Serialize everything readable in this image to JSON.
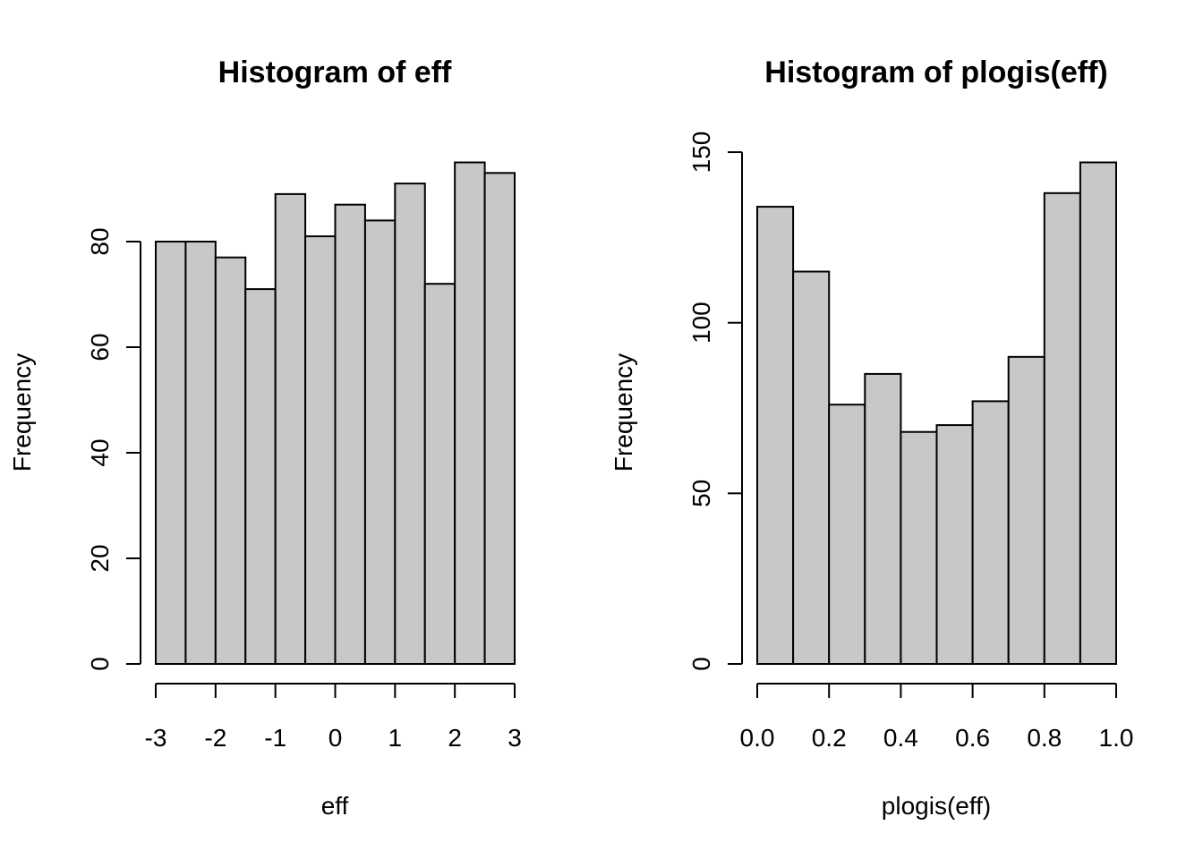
{
  "chart_data": [
    {
      "type": "bar",
      "title": "Histogram of eff",
      "xlabel": "eff",
      "ylabel": "Frequency",
      "bins": [
        {
          "from": -3.0,
          "to": -2.5,
          "count": 80
        },
        {
          "from": -2.5,
          "to": -2.0,
          "count": 80
        },
        {
          "from": -2.0,
          "to": -1.5,
          "count": 77
        },
        {
          "from": -1.5,
          "to": -1.0,
          "count": 71
        },
        {
          "from": -1.0,
          "to": -0.5,
          "count": 89
        },
        {
          "from": -0.5,
          "to": 0.0,
          "count": 81
        },
        {
          "from": 0.0,
          "to": 0.5,
          "count": 87
        },
        {
          "from": 0.5,
          "to": 1.0,
          "count": 84
        },
        {
          "from": 1.0,
          "to": 1.5,
          "count": 91
        },
        {
          "from": 1.5,
          "to": 2.0,
          "count": 72
        },
        {
          "from": 2.0,
          "to": 2.5,
          "count": 95
        },
        {
          "from": 2.5,
          "to": 3.0,
          "count": 93
        }
      ],
      "xticks": [
        -3,
        -2,
        -1,
        0,
        1,
        2,
        3
      ],
      "xtick_labels": [
        "-3",
        "-2",
        "-1",
        "0",
        "1",
        "2",
        "3"
      ],
      "yticks": [
        0,
        20,
        40,
        60,
        80
      ],
      "ytick_labels": [
        "0",
        "20",
        "40",
        "60",
        "80"
      ],
      "xlim": [
        -3,
        3
      ],
      "ylim": [
        0,
        95
      ],
      "bar_color": "#c8c8c8",
      "grid": false
    },
    {
      "type": "bar",
      "title": "Histogram of plogis(eff)",
      "xlabel": "plogis(eff)",
      "ylabel": "Frequency",
      "bins": [
        {
          "from": 0.0,
          "to": 0.1,
          "count": 134
        },
        {
          "from": 0.1,
          "to": 0.2,
          "count": 115
        },
        {
          "from": 0.2,
          "to": 0.3,
          "count": 76
        },
        {
          "from": 0.3,
          "to": 0.4,
          "count": 85
        },
        {
          "from": 0.4,
          "to": 0.5,
          "count": 68
        },
        {
          "from": 0.5,
          "to": 0.6,
          "count": 70
        },
        {
          "from": 0.6,
          "to": 0.7,
          "count": 77
        },
        {
          "from": 0.7,
          "to": 0.8,
          "count": 90
        },
        {
          "from": 0.8,
          "to": 0.9,
          "count": 138
        },
        {
          "from": 0.9,
          "to": 1.0,
          "count": 147
        }
      ],
      "xticks": [
        0.0,
        0.2,
        0.4,
        0.6,
        0.8,
        1.0
      ],
      "xtick_labels": [
        "0.0",
        "0.2",
        "0.4",
        "0.6",
        "0.8",
        "1.0"
      ],
      "yticks": [
        0,
        50,
        100,
        150
      ],
      "ytick_labels": [
        "0",
        "50",
        "100",
        "150"
      ],
      "xlim": [
        0,
        1
      ],
      "ylim": [
        0,
        150
      ],
      "bar_color": "#c8c8c8",
      "grid": false
    }
  ]
}
